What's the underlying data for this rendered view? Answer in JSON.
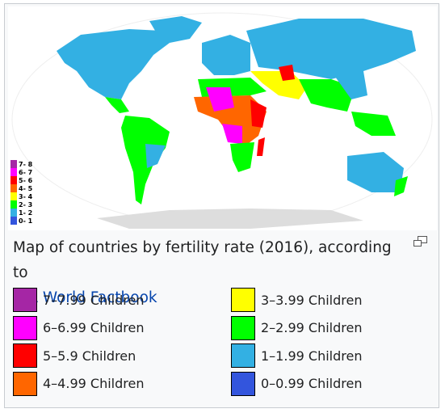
{
  "map": {
    "inset_legend": [
      "7- 8",
      "6- 7",
      "5- 6",
      "4- 5",
      "3- 4",
      "2- 3",
      "1- 2",
      "0- 1"
    ]
  },
  "caption": {
    "text": "Map of countries by fertility rate (2016), according to",
    "link": "CIA World Factbook"
  },
  "legend": [
    {
      "label": "7–7.99 Children",
      "color": "#a526a5"
    },
    {
      "label": "6–6.99 Children",
      "color": "#ff00ff"
    },
    {
      "label": "5–5.9 Children",
      "color": "#ff0000"
    },
    {
      "label": "4–4.99 Children",
      "color": "#ff6600"
    },
    {
      "label": "3–3.99 Children",
      "color": "#ffff00"
    },
    {
      "label": "2–2.99 Children",
      "color": "#00ff00"
    },
    {
      "label": "1–1.99 Children",
      "color": "#33b0e3"
    },
    {
      "label": "0–0.99 Children",
      "color": "#3355dd"
    }
  ]
}
